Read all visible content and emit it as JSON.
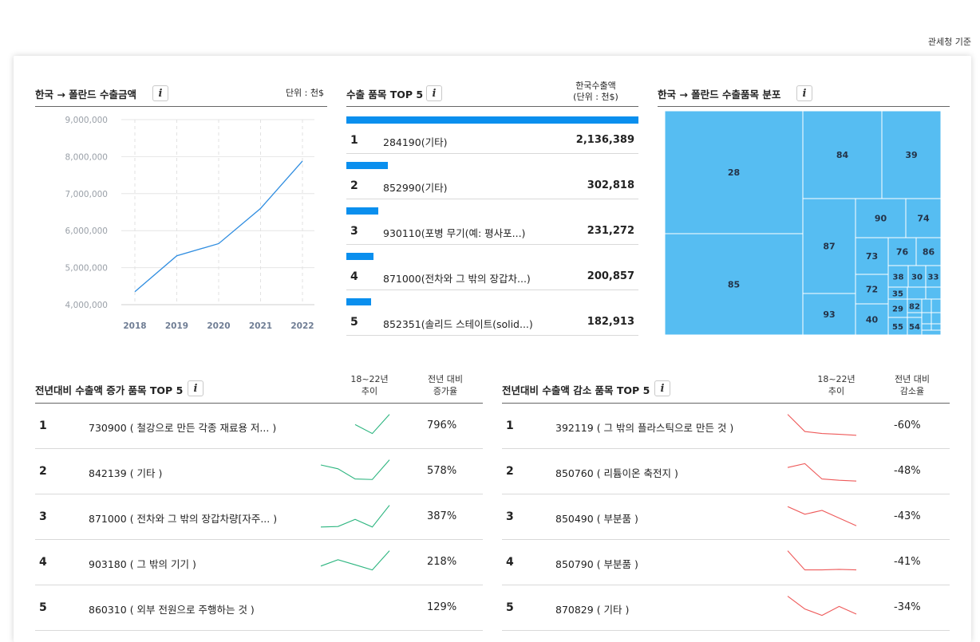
{
  "source_label": "관세청 기준",
  "line_panel": {
    "title": "한국 → 폴란드  수출금액",
    "unit": "단위 : 천$"
  },
  "top5_panel": {
    "title": "수출 품목 TOP 5",
    "unit_line1": "한국수출액",
    "unit_line2": "(단위 : 천$)",
    "items": [
      {
        "rank": "1",
        "label": "284190(기타)",
        "value": "2,136,389"
      },
      {
        "rank": "2",
        "label": "852990(기타)",
        "value": "302,818"
      },
      {
        "rank": "3",
        "label": "930110(포병 무기(예: 평사포...)",
        "value": "231,272"
      },
      {
        "rank": "4",
        "label": "871000(전차와 그 밖의 장갑차...)",
        "value": "200,857"
      },
      {
        "rank": "5",
        "label": "852351(솔리드 스테이트(solid...)",
        "value": "182,913"
      }
    ]
  },
  "treemap_panel": {
    "title": "한국 → 폴란드  수출품목 분포"
  },
  "increase_panel": {
    "title": "전년대비 수출액 증가 품목 TOP 5",
    "trend_head_1": "18~22년",
    "trend_head_2": "추이",
    "rate_head_1": "전년 대비",
    "rate_head_2": "증가율",
    "items": [
      {
        "rank": "1",
        "label": "730900 ( 철강으로 만든 각종 재료용 저... )",
        "rate": "796%"
      },
      {
        "rank": "2",
        "label": "842139 ( 기타 )",
        "rate": "578%"
      },
      {
        "rank": "3",
        "label": "871000 ( 전차와 그 밖의 장갑차량[자주... )",
        "rate": "387%"
      },
      {
        "rank": "4",
        "label": "903180 ( 그 밖의 기기 )",
        "rate": "218%"
      },
      {
        "rank": "5",
        "label": "860310 ( 외부 전원으로 주행하는 것 )",
        "rate": "129%"
      }
    ]
  },
  "decrease_panel": {
    "title": "전년대비 수출액 감소 품목 TOP 5",
    "trend_head_1": "18~22년",
    "trend_head_2": "추이",
    "rate_head_1": "전년 대비",
    "rate_head_2": "감소율",
    "items": [
      {
        "rank": "1",
        "label": "392119 ( 그 밖의 플라스틱으로 만든 것 )",
        "rate": "-60%"
      },
      {
        "rank": "2",
        "label": "850760 ( 리튬이온 축전지 )",
        "rate": "-48%"
      },
      {
        "rank": "3",
        "label": "850490 ( 부분품 )",
        "rate": "-43%"
      },
      {
        "rank": "4",
        "label": "850790 ( 부분품 )",
        "rate": "-41%"
      },
      {
        "rank": "5",
        "label": "870829 ( 기타 )",
        "rate": "-34%"
      }
    ]
  },
  "colors": {
    "line": "#2f8de0",
    "bar": "#0a8fee",
    "treemap": "#56bdf2",
    "spark_up": "#2cb57f",
    "spark_down": "#ee5a5a"
  },
  "chart_data": [
    {
      "type": "line",
      "title": "한국 → 폴란드  수출금액",
      "unit": "천$",
      "x": [
        "2018",
        "2019",
        "2020",
        "2021",
        "2022"
      ],
      "values": [
        4350000,
        5320000,
        5650000,
        6600000,
        7880000
      ],
      "ylim": [
        4000000,
        9000000
      ],
      "yticks": [
        4000000,
        5000000,
        6000000,
        7000000,
        8000000,
        9000000
      ],
      "ytick_labels": [
        "4,000,000",
        "5,000,000",
        "6,000,000",
        "7,000,000",
        "8,000,000",
        "9,000,000"
      ],
      "grid": true
    },
    {
      "type": "bar",
      "title": "수출 품목 TOP 5",
      "categories": [
        "284190(기타)",
        "852990(기타)",
        "930110(포병 무기(예: 평사포...)",
        "871000(전차와 그 밖의 장갑차...)",
        "852351(솔리드 스테이트(solid...)"
      ],
      "values": [
        2136389,
        302818,
        231272,
        200857,
        182913
      ]
    },
    {
      "type": "treemap",
      "title": "한국 → 폴란드  수출품목 분포",
      "labels": [
        "28",
        "85",
        "84",
        "39",
        "87",
        "93",
        "90",
        "74",
        "73",
        "76",
        "86",
        "72",
        "38",
        "30",
        "33",
        "35",
        "29",
        "82",
        "40",
        "55",
        "54"
      ],
      "values": [
        22.3,
        17.2,
        6.9,
        6.3,
        5.9,
        2.5,
        2.8,
        1.8,
        1.5,
        1.1,
        1.1,
        1.1,
        0.55,
        0.45,
        0.35,
        0.35,
        0.45,
        0.35,
        0.7,
        0.45,
        0.35
      ]
    },
    {
      "type": "line",
      "title": "전년대비 수출액 증가 품목 TOP 5 (18~22년 추이)",
      "x": [
        "2018",
        "2019",
        "2020",
        "2021",
        "2022"
      ],
      "series": [
        {
          "name": "730900",
          "values": [
            null,
            null,
            0.55,
            0.2,
            0.95
          ]
        },
        {
          "name": "842139",
          "values": [
            0.75,
            0.6,
            0.2,
            0.18,
            0.95
          ]
        },
        {
          "name": "871000",
          "values": [
            0.1,
            0.12,
            0.4,
            0.1,
            0.95
          ]
        },
        {
          "name": "903180",
          "values": [
            0.35,
            0.6,
            0.4,
            0.2,
            0.95
          ]
        },
        {
          "name": "860310",
          "values": [
            null,
            null,
            null,
            null,
            null
          ]
        }
      ]
    },
    {
      "type": "line",
      "title": "전년대비 수출액 감소 품목 TOP 5 (18~22년 추이)",
      "x": [
        "2018",
        "2019",
        "2020",
        "2021",
        "2022"
      ],
      "series": [
        {
          "name": "392119",
          "values": [
            0.95,
            0.28,
            0.2,
            0.17,
            0.13
          ]
        },
        {
          "name": "850760",
          "values": [
            0.65,
            0.8,
            0.2,
            0.15,
            0.12
          ]
        },
        {
          "name": "850490",
          "values": [
            0.9,
            0.6,
            0.75,
            0.45,
            0.15
          ]
        },
        {
          "name": "850790",
          "values": [
            0.95,
            0.2,
            0.2,
            0.22,
            0.2
          ]
        },
        {
          "name": "870829",
          "values": [
            0.95,
            0.45,
            0.2,
            0.55,
            0.25
          ]
        }
      ]
    }
  ]
}
